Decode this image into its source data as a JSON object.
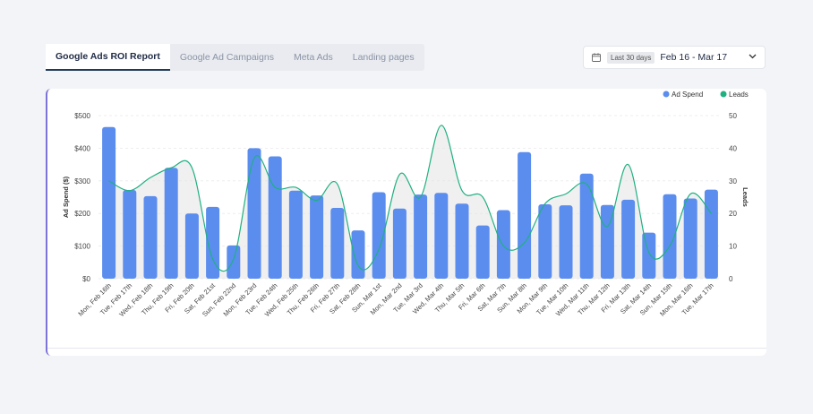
{
  "tabs": [
    {
      "label": "Google Ads ROI Report",
      "active": true
    },
    {
      "label": "Google Ad Campaigns",
      "active": false
    },
    {
      "label": "Meta Ads",
      "active": false
    },
    {
      "label": "Landing pages",
      "active": false
    }
  ],
  "date_range": {
    "preset": "Last 30 days",
    "range": "Feb 16 - Mar 17"
  },
  "colors": {
    "bar": "#5b8def",
    "line": "#1fb082",
    "area": "#e6e6e6"
  },
  "chart_data": {
    "type": "bar",
    "categories": [
      "Mon, Feb 16th",
      "Tue, Feb 17th",
      "Wed, Feb 18th",
      "Thu, Feb 19th",
      "Fri, Feb 20th",
      "Sat, Feb 21st",
      "Sun, Feb 22nd",
      "Mon, Feb 23rd",
      "Tue, Feb 24th",
      "Wed, Feb 25th",
      "Thu, Feb 26th",
      "Fri, Feb 27th",
      "Sat, Feb 28th",
      "Sun, Mar 1st",
      "Mon, Mar 2nd",
      "Tue, Mar 3rd",
      "Wed, Mar 4th",
      "Thu, Mar 5th",
      "Fri, Mar 6th",
      "Sat, Mar 7th",
      "Sun, Mar 8th",
      "Mon, Mar 9th",
      "Tue, Mar 10th",
      "Wed, Mar 11th",
      "Thu, Mar 12th",
      "Fri, Mar 13th",
      "Sat, Mar 14th",
      "Sun, Mar 15th",
      "Mon, Mar 16th",
      "Tue, Mar 17th"
    ],
    "series": [
      {
        "name": "Ad Spend",
        "type": "bar",
        "axis": "left",
        "values": [
          465,
          272,
          253,
          340,
          200,
          220,
          102,
          400,
          375,
          270,
          255,
          217,
          148,
          265,
          215,
          258,
          263,
          230,
          163,
          210,
          388,
          228,
          225,
          322,
          226,
          242,
          141,
          259,
          246,
          273
        ]
      },
      {
        "name": "Leads",
        "type": "line",
        "axis": "right",
        "values": [
          30,
          27,
          31,
          34,
          34,
          6,
          6,
          37,
          28,
          28,
          24,
          29,
          4,
          9,
          32,
          25,
          47,
          27,
          25,
          10,
          11,
          23,
          26,
          29,
          16,
          35,
          8,
          10,
          26,
          20
        ]
      }
    ],
    "ylabel": "Ad Spend ($)",
    "y2label": "Leads",
    "ylim": [
      0,
      500
    ],
    "y2lim": [
      0,
      50
    ],
    "yticks": [
      "$0",
      "$100",
      "$200",
      "$300",
      "$400",
      "$500"
    ],
    "y2ticks": [
      "0",
      "10",
      "20",
      "30",
      "40",
      "50"
    ],
    "legend_position": "top-right",
    "grid": true
  }
}
